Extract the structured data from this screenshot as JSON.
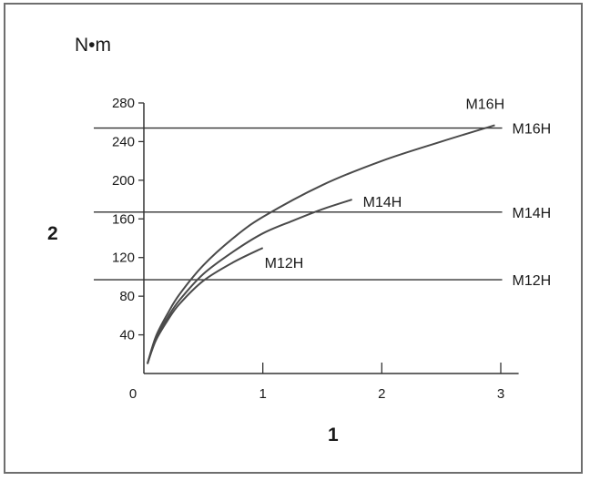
{
  "chart_data": {
    "type": "line",
    "title": "",
    "ylabel_unit": "N•m",
    "xlabel_marker": "1",
    "ylabel_marker": "2",
    "xlim": [
      0,
      3.15
    ],
    "ylim": [
      0,
      280
    ],
    "x_ticks": [
      {
        "value": 0,
        "label": "0"
      },
      {
        "value": 1,
        "label": "1"
      },
      {
        "value": 2,
        "label": "2"
      },
      {
        "value": 3,
        "label": "3"
      }
    ],
    "y_ticks": [
      {
        "value": 40,
        "label": "40"
      },
      {
        "value": 80,
        "label": "80"
      },
      {
        "value": 120,
        "label": "120"
      },
      {
        "value": 160,
        "label": "160"
      },
      {
        "value": 200,
        "label": "200"
      },
      {
        "value": 240,
        "label": "240"
      },
      {
        "value": 280,
        "label": "280"
      }
    ],
    "reference_lines": [
      {
        "name": "M16H",
        "y": 254,
        "x_end": 3.05
      },
      {
        "name": "M14H",
        "y": 167,
        "x_end": 3.05
      },
      {
        "name": "M12H",
        "y": 97,
        "x_end": 3.05
      }
    ],
    "series": [
      {
        "name": "M16H",
        "x": [
          0.03,
          0.1,
          0.2,
          0.3,
          0.5,
          0.75,
          1.0,
          1.5,
          2.0,
          2.5,
          2.95
        ],
        "y": [
          10,
          38,
          62,
          82,
          112,
          140,
          162,
          195,
          220,
          240,
          257
        ]
      },
      {
        "name": "M14H",
        "x": [
          0.03,
          0.1,
          0.2,
          0.3,
          0.5,
          0.75,
          1.0,
          1.25,
          1.5,
          1.75
        ],
        "y": [
          10,
          36,
          58,
          76,
          103,
          126,
          145,
          158,
          170,
          180
        ]
      },
      {
        "name": "M12H",
        "x": [
          0.03,
          0.1,
          0.2,
          0.3,
          0.5,
          0.75,
          1.0
        ],
        "y": [
          10,
          34,
          55,
          72,
          96,
          115,
          130
        ]
      }
    ]
  }
}
